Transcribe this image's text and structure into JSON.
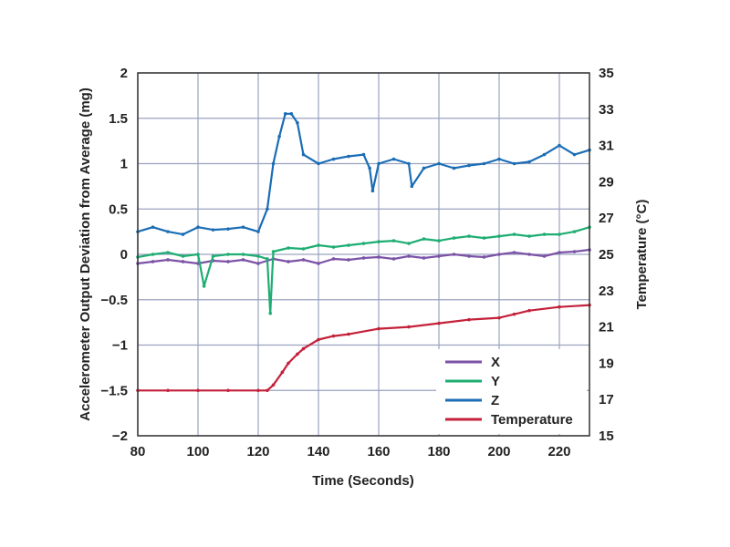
{
  "chart_data": {
    "type": "line",
    "title": "",
    "xlabel": "Time (Seconds)",
    "ylabel_left": "Accelerometer Output Deviation from Average (mg)",
    "ylabel_right": "Temperature (°C)",
    "xlim": [
      80,
      230
    ],
    "ylim_left": [
      -2,
      2
    ],
    "ylim_right": [
      15,
      35
    ],
    "x_ticks": [
      "80",
      "100",
      "120",
      "140",
      "160",
      "180",
      "200",
      "220"
    ],
    "y_ticks_left": [
      "2",
      "1.5",
      "1",
      "0.5",
      "0",
      "−0.5",
      "−1",
      "−1.5",
      "−2"
    ],
    "y_ticks_right": [
      "35",
      "33",
      "31",
      "29",
      "27",
      "25",
      "23",
      "21",
      "19",
      "17",
      "15"
    ],
    "grid": true,
    "legend_position": "bottom-right",
    "series": [
      {
        "name": "X",
        "axis": "left",
        "color": "#7b52a6",
        "x": [
          80,
          85,
          90,
          95,
          100,
          105,
          110,
          115,
          120,
          125,
          130,
          135,
          140,
          145,
          150,
          155,
          160,
          165,
          170,
          175,
          180,
          185,
          190,
          195,
          200,
          205,
          210,
          215,
          220,
          225,
          230
        ],
        "y": [
          -0.1,
          -0.08,
          -0.06,
          -0.08,
          -0.1,
          -0.07,
          -0.08,
          -0.06,
          -0.1,
          -0.05,
          -0.08,
          -0.06,
          -0.1,
          -0.05,
          -0.06,
          -0.04,
          -0.03,
          -0.05,
          -0.02,
          -0.04,
          -0.02,
          0.0,
          -0.02,
          -0.03,
          0.0,
          0.02,
          0.0,
          -0.02,
          0.02,
          0.03,
          0.05
        ]
      },
      {
        "name": "Y",
        "axis": "left",
        "color": "#1ead72",
        "x": [
          80,
          85,
          90,
          95,
          100,
          102,
          105,
          110,
          115,
          120,
          123,
          124,
          125,
          130,
          135,
          140,
          145,
          150,
          155,
          160,
          165,
          170,
          175,
          180,
          185,
          190,
          195,
          200,
          205,
          210,
          215,
          220,
          225,
          230
        ],
        "y": [
          -0.03,
          0.0,
          0.02,
          -0.02,
          0.0,
          -0.35,
          -0.02,
          0.0,
          0.0,
          -0.02,
          -0.05,
          -0.65,
          0.03,
          0.07,
          0.06,
          0.1,
          0.08,
          0.1,
          0.12,
          0.14,
          0.15,
          0.12,
          0.17,
          0.15,
          0.18,
          0.2,
          0.18,
          0.2,
          0.22,
          0.2,
          0.22,
          0.22,
          0.25,
          0.3
        ]
      },
      {
        "name": "Z",
        "axis": "left",
        "color": "#1b6db5",
        "x": [
          80,
          85,
          90,
          95,
          100,
          105,
          110,
          115,
          120,
          123,
          125,
          127,
          129,
          131,
          133,
          135,
          140,
          145,
          150,
          155,
          157,
          158,
          160,
          165,
          170,
          171,
          175,
          180,
          185,
          190,
          195,
          200,
          205,
          210,
          215,
          220,
          225,
          230
        ],
        "y": [
          0.25,
          0.3,
          0.25,
          0.22,
          0.3,
          0.27,
          0.28,
          0.3,
          0.25,
          0.5,
          1.0,
          1.3,
          1.55,
          1.55,
          1.45,
          1.1,
          1.0,
          1.05,
          1.08,
          1.1,
          0.95,
          0.7,
          1.0,
          1.05,
          1.0,
          0.75,
          0.95,
          1.0,
          0.95,
          0.98,
          1.0,
          1.05,
          1.0,
          1.02,
          1.1,
          1.2,
          1.1,
          1.15
        ]
      },
      {
        "name": "Temperature",
        "axis": "right",
        "color": "#c4213a",
        "x": [
          80,
          90,
          100,
          110,
          120,
          123,
          125,
          128,
          130,
          133,
          135,
          140,
          145,
          150,
          160,
          170,
          180,
          190,
          200,
          205,
          210,
          220,
          230
        ],
        "y": [
          17.5,
          17.5,
          17.5,
          17.5,
          17.5,
          17.5,
          17.8,
          18.5,
          19.0,
          19.5,
          19.8,
          20.3,
          20.5,
          20.6,
          20.9,
          21.0,
          21.2,
          21.4,
          21.5,
          21.7,
          21.9,
          22.1,
          22.2
        ]
      }
    ]
  }
}
